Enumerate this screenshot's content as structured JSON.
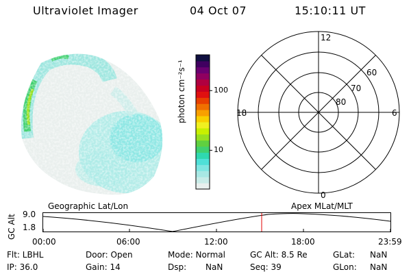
{
  "header": {
    "title": "Ultraviolet Imager",
    "date": "04 Oct 07",
    "time": "15:10:11 UT"
  },
  "colorbar": {
    "label": "photon cm⁻²s⁻¹",
    "ticks": [
      {
        "label": "100",
        "value": 100
      },
      {
        "label": "10",
        "value": 10
      }
    ],
    "colors": [
      "#e8f0ee",
      "#c8ece8",
      "#a8e8e4",
      "#7fe6e2",
      "#4fe0d8",
      "#2fd8b0",
      "#40d070",
      "#60d040",
      "#98e020",
      "#c8f000",
      "#f0f020",
      "#f8d000",
      "#f8a000",
      "#f07000",
      "#e84000",
      "#e01010",
      "#c80020",
      "#b00040",
      "#900060",
      "#6a0070",
      "#400060",
      "#101040"
    ]
  },
  "polar": {
    "mlt_labels": {
      "top": "12",
      "left": "18",
      "right": "6",
      "bottom": "0"
    },
    "lat_labels": [
      "60",
      "70",
      "80"
    ]
  },
  "timeline": {
    "ylabel": "GC Alt",
    "y_ticks": [
      "9.0",
      "1.8"
    ],
    "left_label": "Geographic Lat/Lon",
    "right_label": "Apex MLat/MLT",
    "x_ticks": [
      "00:00",
      "06:00",
      "12:00",
      "18:00",
      "23:59"
    ],
    "marker_color": "#e00000"
  },
  "info": {
    "flt": "Flt: LBHL",
    "ip": "IP: 36.0",
    "door": "Door: Open",
    "gain": "Gain: 14",
    "mode": "Mode: Normal",
    "dsp_label": "Dsp:",
    "dsp_value": "NaN",
    "gcalt": "GC Alt: 8.5 Re",
    "seq": "Seq: 39",
    "glat_label": "GLat:",
    "glat_value": "NaN",
    "glon_label": "GLon:",
    "glon_value": "NaN"
  }
}
